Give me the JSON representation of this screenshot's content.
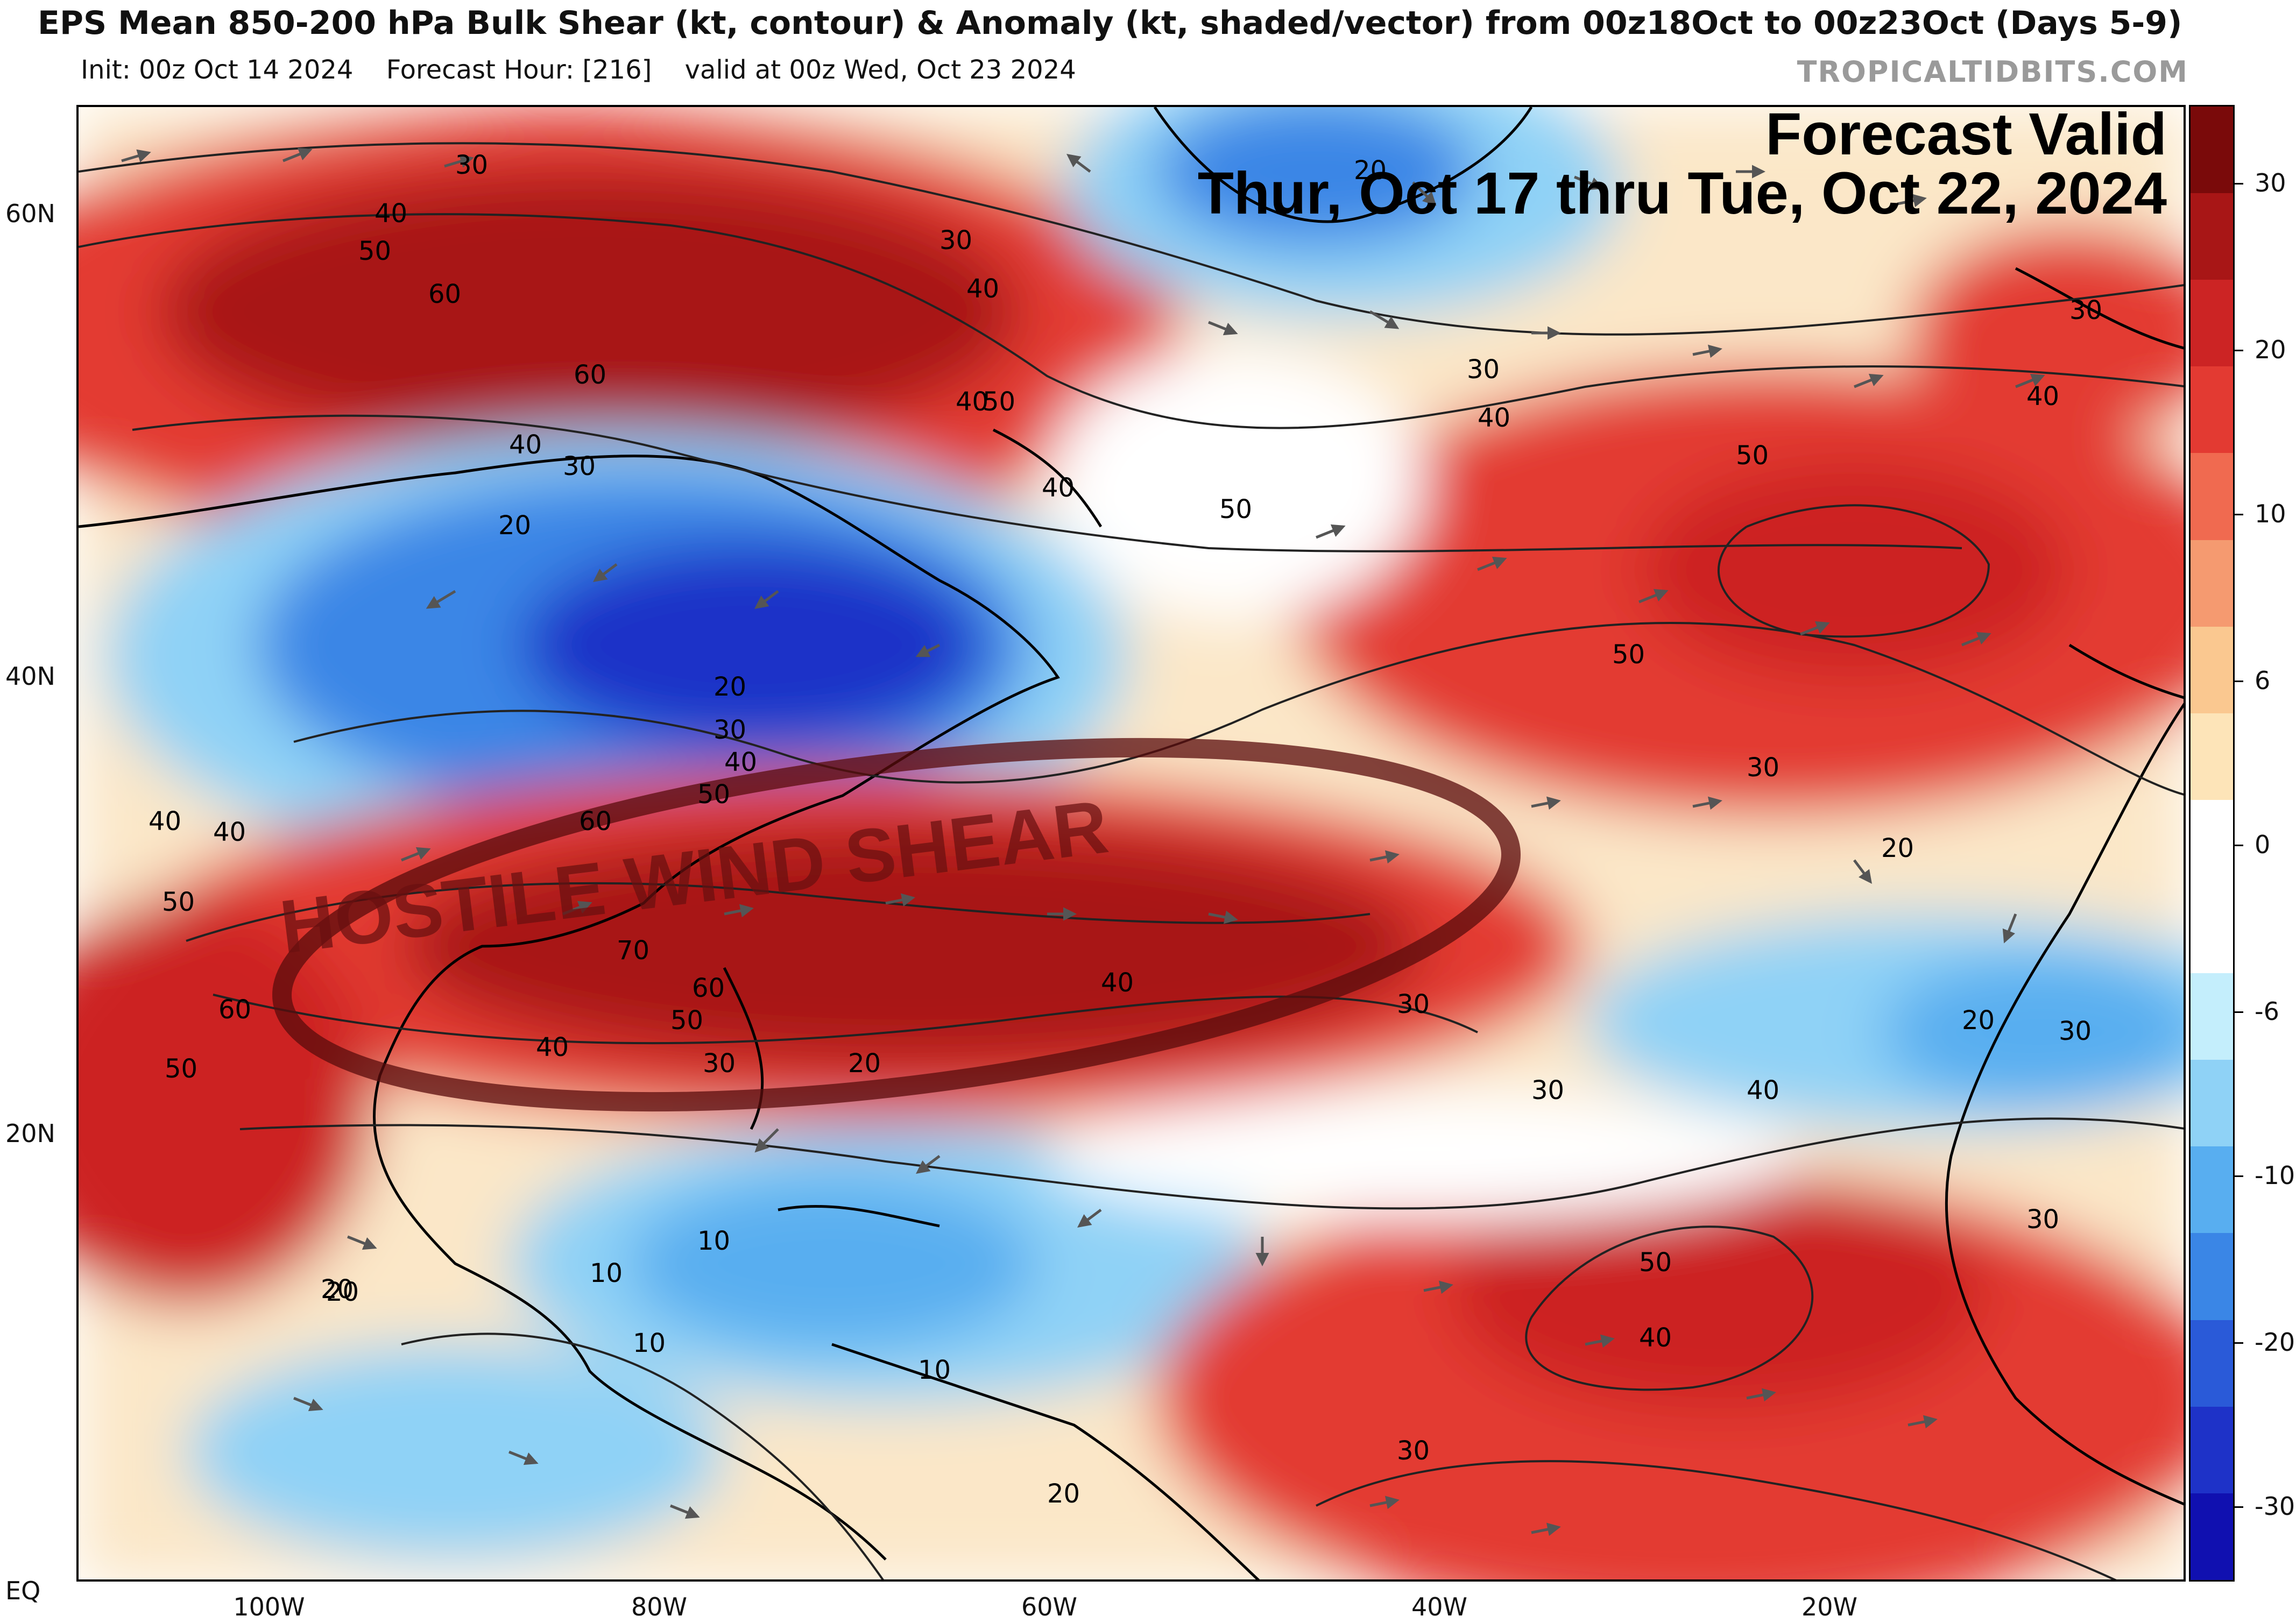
{
  "header": {
    "title": "EPS Mean 850-200 hPa Bulk Shear (kt, contour) & Anomaly (kt, shaded/vector) from 00z18Oct to 00z23Oct (Days 5-9)",
    "init": "Init: 00z Oct 14 2024",
    "forecast_hour": "Forecast Hour: [216]",
    "valid": "valid at 00z Wed, Oct 23 2024",
    "credit": "TROPICALTIDBITS.COM"
  },
  "overlay": {
    "valid_line1": "Forecast Valid",
    "valid_line2": "Thur, Oct 17 thru Tue, Oct 22, 2024",
    "stamp_text": "HOSTILE WIND SHEAR"
  },
  "axes": {
    "lat_labels": [
      "60N",
      "40N",
      "20N",
      "EQ"
    ],
    "lon_labels": [
      "100W",
      "80W",
      "60W",
      "40W",
      "20W"
    ]
  },
  "colorbar": {
    "labels": [
      "30",
      "20",
      "10",
      "6",
      "0",
      "-6",
      "-10",
      "-20",
      "-30"
    ],
    "colors": [
      "#7a0a0a",
      "#a81616",
      "#cc2424",
      "#e33a32",
      "#f06a50",
      "#f59a70",
      "#fac890",
      "#fde4b8",
      "#ffffff",
      "#ffffff",
      "#c4eefc",
      "#8fd2f6",
      "#58aef0",
      "#3a86e6",
      "#2a5ad8",
      "#1e32c8",
      "#1010b0"
    ]
  },
  "contour_labels": [
    "30",
    "40",
    "50",
    "60",
    "70",
    "20",
    "10"
  ],
  "colors": {
    "strong_positive": "#a81616",
    "positive": "#e33a32",
    "weak_positive": "#fac890",
    "negative": "#58aef0",
    "strong_negative": "#1e32c8",
    "land_outline": "#000000",
    "stamp": "#6a1010"
  }
}
